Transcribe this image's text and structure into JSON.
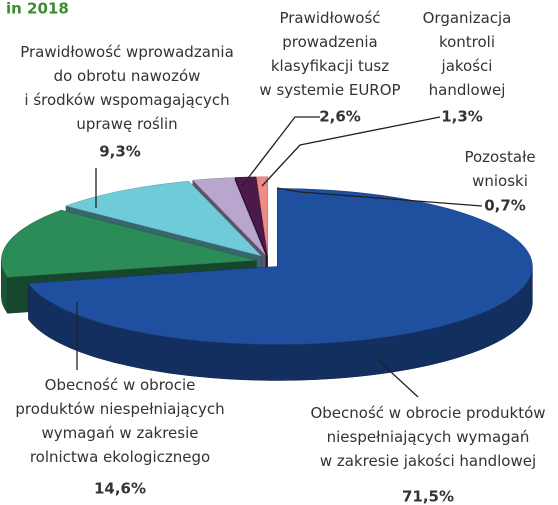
{
  "chart_data": {
    "type": "pie",
    "title": "in 2018",
    "categories": [
      "Obecność w obrocie produktów\nniespełniających wymagań\nw zakresie jakości handlowej",
      "Obecność w obrocie\nproduktów niespełniających\nwymagań w zakresie\nrolnictwa ekologicznego",
      "Prawidłowość wprowadzania\ndo obrotu nawozów\ni środków wspomagających\nuprawę roślin",
      "Prawidłowość\nprowadzenia\nklasyfikacji tusz\nw systemie EUROP",
      "Organizacja\nkontroli\njakości\nhandlowej",
      "Pozostałe\nwnioski"
    ],
    "values": [
      71.5,
      14.6,
      9.3,
      2.6,
      1.3,
      0.7
    ],
    "value_labels": [
      "71,5%",
      "14,6%",
      "9,3%",
      "2,6%",
      "1,3%",
      "0,7%"
    ],
    "colors": [
      "#1f4f9f",
      "#2c8c57",
      "#70cbd8",
      "#b8a6cf",
      "#4b1a4a",
      "#f08a86"
    ]
  }
}
